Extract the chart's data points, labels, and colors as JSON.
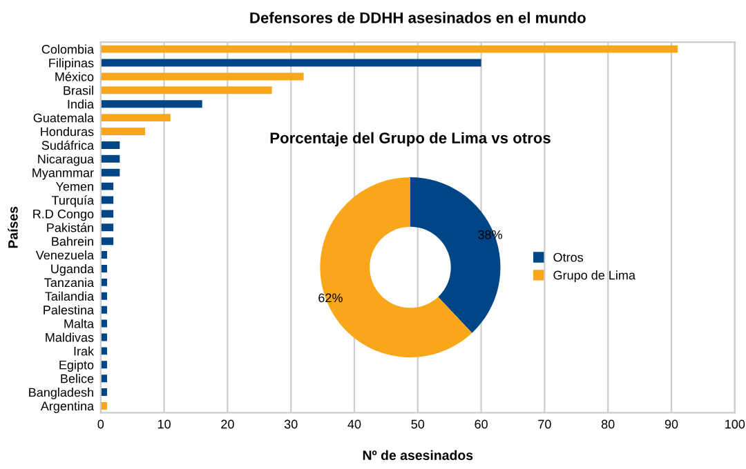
{
  "chart_data": [
    {
      "type": "bar",
      "orientation": "horizontal",
      "title": "Defensores de DDHH asesinados en el mundo",
      "xlabel": "Nº de asesinados",
      "ylabel": "Países",
      "categories": [
        "Colombia",
        "Filipinas",
        "México",
        "Brasil",
        "India",
        "Guatemala",
        "Honduras",
        "Sudáfrica",
        "Nicaragua",
        "Myanmmar",
        "Yemen",
        "Turquía",
        "R.D Congo",
        "Pakistán",
        "Bahrein",
        "Venezuela",
        "Uganda",
        "Tanzania",
        "Tailandia",
        "Palestina",
        "Malta",
        "Maldivas",
        "Irak",
        "Egipto",
        "Belice",
        "Bangladesh",
        "Argentina"
      ],
      "values": [
        91,
        60,
        32,
        27,
        16,
        11,
        7,
        3,
        3,
        3,
        2,
        2,
        2,
        2,
        2,
        1,
        1,
        1,
        1,
        1,
        1,
        1,
        1,
        1,
        1,
        1,
        1
      ],
      "colors": [
        "#f9a61a",
        "#004586",
        "#f9a61a",
        "#f9a61a",
        "#004586",
        "#f9a61a",
        "#f9a61a",
        "#004586",
        "#004586",
        "#004586",
        "#004586",
        "#004586",
        "#004586",
        "#004586",
        "#004586",
        "#004586",
        "#004586",
        "#004586",
        "#004586",
        "#004586",
        "#004586",
        "#004586",
        "#004586",
        "#004586",
        "#004586",
        "#004586",
        "#f9a61a"
      ],
      "xlim": [
        0,
        100
      ],
      "xticks": [
        0,
        10,
        20,
        30,
        40,
        50,
        60,
        70,
        80,
        90,
        100
      ],
      "grid": "x",
      "legend": false
    },
    {
      "type": "donut",
      "title": "Porcentaje del Grupo de Lima vs otros",
      "categories": [
        "Otros",
        "Grupo de Lima"
      ],
      "values": [
        38,
        62
      ],
      "colors": [
        "#004586",
        "#f9a61a"
      ],
      "value_labels": [
        "38%",
        "62%"
      ],
      "legend": "right"
    }
  ]
}
